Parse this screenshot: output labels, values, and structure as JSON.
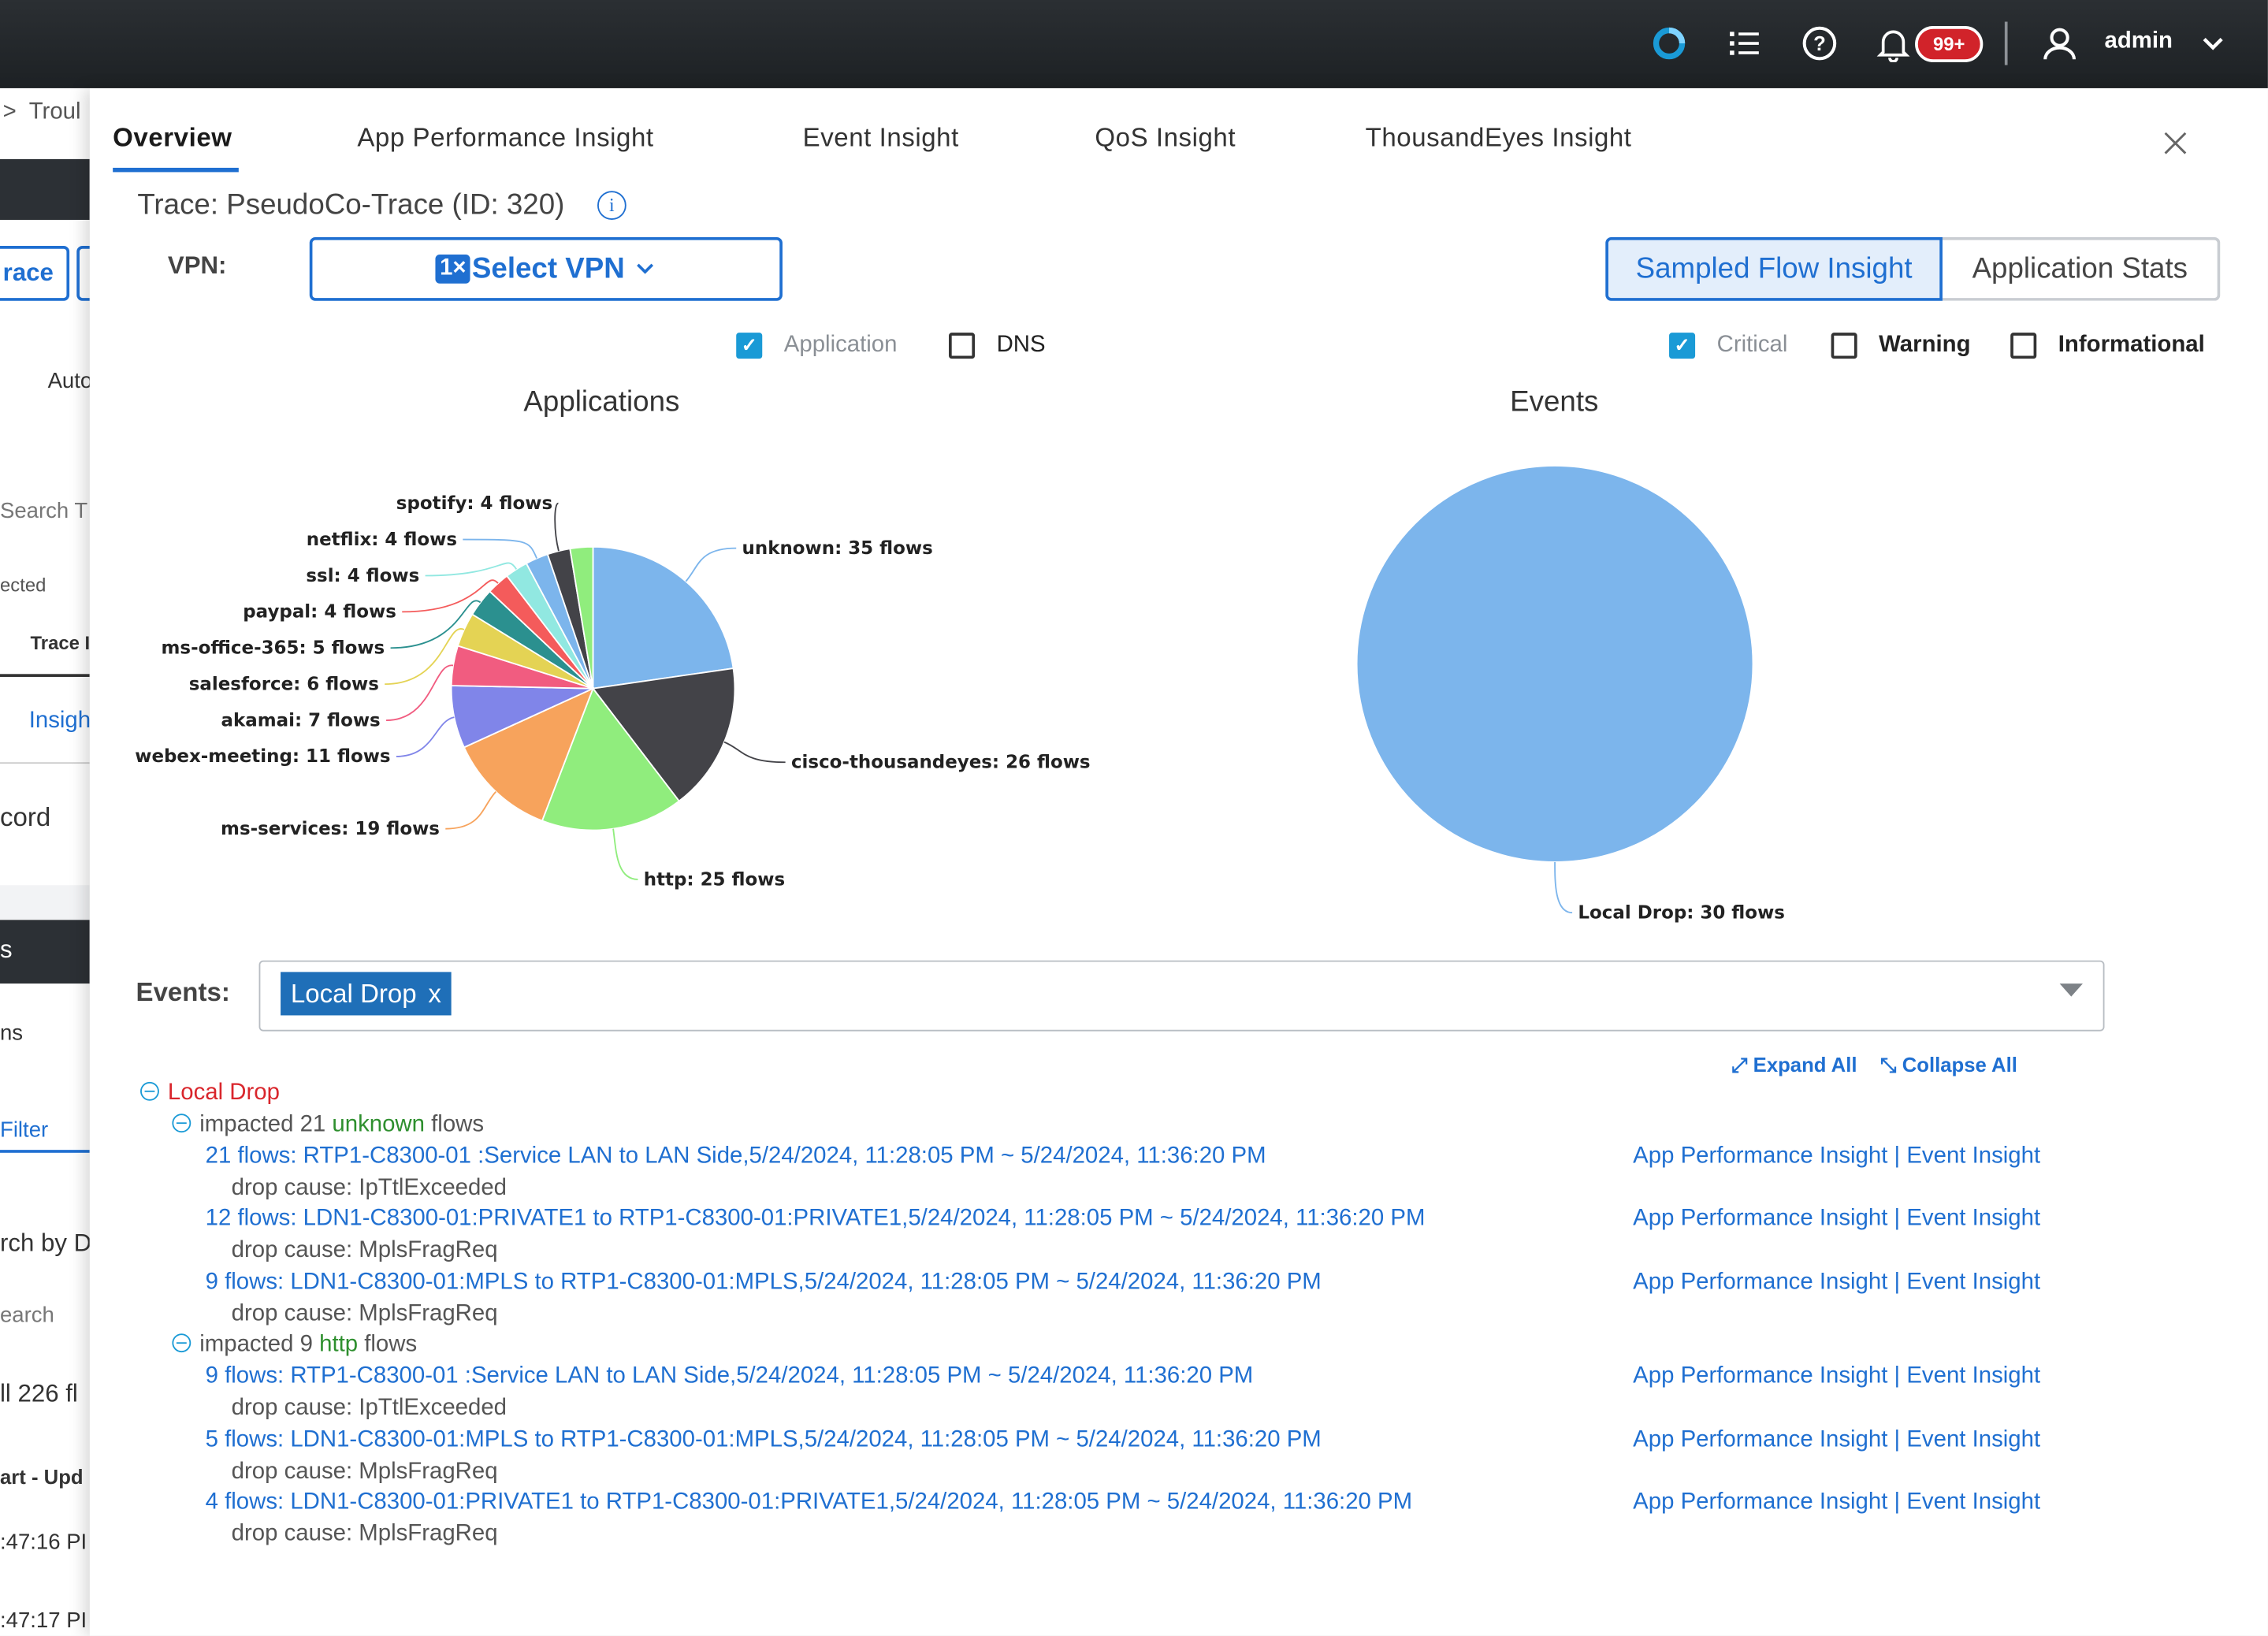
{
  "topbar": {
    "notifications_badge": "99+",
    "user": "admin",
    "icons": [
      "loader-logo-icon",
      "task-list-icon",
      "help-icon",
      "bell-icon",
      "user-icon",
      "chevron-down-icon"
    ]
  },
  "background_page": {
    "fragments": [
      "Troul",
      "race",
      "Auto",
      "Search T",
      "ected",
      "Trace I",
      "Insigh",
      "cord",
      "s",
      "ns",
      "Filter",
      "rch by D",
      "earch",
      "ll 226 fl",
      "art - Upd",
      ":47:16 PI",
      ":47:17 PI"
    ]
  },
  "tabs": [
    {
      "label": "Overview",
      "active": true
    },
    {
      "label": "App Performance Insight",
      "active": false
    },
    {
      "label": "Event Insight",
      "active": false
    },
    {
      "label": "QoS Insight",
      "active": false
    },
    {
      "label": "ThousandEyes Insight",
      "active": false
    }
  ],
  "trace_title": "Trace: PseudoCo-Trace (ID: 320)",
  "vpn": {
    "label": "VPN:",
    "tag": "1×",
    "placeholder": "Select VPN"
  },
  "view_toggle": {
    "options": [
      "Sampled Flow Insight",
      "Application Stats"
    ],
    "selected": "Sampled Flow Insight"
  },
  "filters_left": [
    {
      "label": "Application",
      "checked": true
    },
    {
      "label": "DNS",
      "checked": false
    }
  ],
  "filters_right": [
    {
      "label": "Critical",
      "checked": true
    },
    {
      "label": "Warning",
      "checked": false
    },
    {
      "label": "Informational",
      "checked": false
    }
  ],
  "chart_data": [
    {
      "type": "pie",
      "title": "Applications",
      "slices": [
        {
          "label": "unknown",
          "value": 35,
          "text": "unknown: 35 flows",
          "color": "#7cb5ec"
        },
        {
          "label": "cisco-thousandeyes",
          "value": 26,
          "text": "cisco-thousandeyes: 26 flows",
          "color": "#434348"
        },
        {
          "label": "http",
          "value": 25,
          "text": "http: 25 flows",
          "color": "#90ed7d"
        },
        {
          "label": "ms-services",
          "value": 19,
          "text": "ms-services: 19 flows",
          "color": "#f7a35c"
        },
        {
          "label": "webex-meeting",
          "value": 11,
          "text": "webex-meeting: 11 flows",
          "color": "#8085e9"
        },
        {
          "label": "akamai",
          "value": 7,
          "text": "akamai: 7 flows",
          "color": "#f15c80"
        },
        {
          "label": "salesforce",
          "value": 6,
          "text": "salesforce: 6 flows",
          "color": "#e4d354"
        },
        {
          "label": "ms-office-365",
          "value": 5,
          "text": "ms-office-365: 5 flows",
          "color": "#2b908f"
        },
        {
          "label": "paypal",
          "value": 4,
          "text": "paypal: 4 flows",
          "color": "#f45b5b"
        },
        {
          "label": "ssl",
          "value": 4,
          "text": "ssl: 4 flows",
          "color": "#91e8e1"
        },
        {
          "label": "netflix",
          "value": 4,
          "text": "netflix: 4 flows",
          "color": "#7cb5ec"
        },
        {
          "label": "spotify",
          "value": 4,
          "text": "spotify: 4 flows",
          "color": "#434348"
        },
        {
          "label": "",
          "value": 4,
          "text": "",
          "color": "#90ed7d"
        }
      ]
    },
    {
      "type": "pie",
      "title": "Events",
      "slices": [
        {
          "label": "Local Drop",
          "value": 30,
          "text": "Local Drop: 30 flows",
          "color": "#7cb5ec"
        }
      ]
    }
  ],
  "events_filter": {
    "label": "Events:",
    "chip": "Local Drop",
    "chip_remove": "x"
  },
  "expand_all": "Expand All",
  "collapse_all": "Collapse All",
  "event_tree": {
    "event": "Local Drop",
    "groups": [
      {
        "prefix": "impacted 21 ",
        "app": "unknown",
        "suffix": " flows",
        "flows": [
          {
            "text": "21 flows: RTP1-C8300-01 :Service LAN to LAN Side,5/24/2024, 11:28:05 PM ~ 5/24/2024, 11:36:20 PM",
            "cause": "drop cause: IpTtlExceeded"
          },
          {
            "text": "12 flows: LDN1-C8300-01:PRIVATE1 to RTP1-C8300-01:PRIVATE1,5/24/2024, 11:28:05 PM ~ 5/24/2024, 11:36:20 PM",
            "cause": "drop cause: MplsFragReq"
          },
          {
            "text": "9 flows: LDN1-C8300-01:MPLS to RTP1-C8300-01:MPLS,5/24/2024, 11:28:05 PM ~ 5/24/2024, 11:36:20 PM",
            "cause": "drop cause: MplsFragReq"
          }
        ]
      },
      {
        "prefix": "impacted 9 ",
        "app": "http",
        "suffix": " flows",
        "flows": [
          {
            "text": "9 flows: RTP1-C8300-01 :Service LAN to LAN Side,5/24/2024, 11:28:05 PM ~ 5/24/2024, 11:36:20 PM",
            "cause": "drop cause: IpTtlExceeded"
          },
          {
            "text": "5 flows: LDN1-C8300-01:MPLS to RTP1-C8300-01:MPLS,5/24/2024, 11:28:05 PM ~ 5/24/2024, 11:36:20 PM",
            "cause": "drop cause: MplsFragReq"
          },
          {
            "text": "4 flows: LDN1-C8300-01:PRIVATE1 to RTP1-C8300-01:PRIVATE1,5/24/2024, 11:28:05 PM ~ 5/24/2024, 11:36:20 PM",
            "cause": "drop cause: MplsFragReq"
          }
        ]
      }
    ]
  },
  "row_links": {
    "app_perf": "App Performance Insight",
    "separator": "|",
    "event": "Event Insight"
  }
}
